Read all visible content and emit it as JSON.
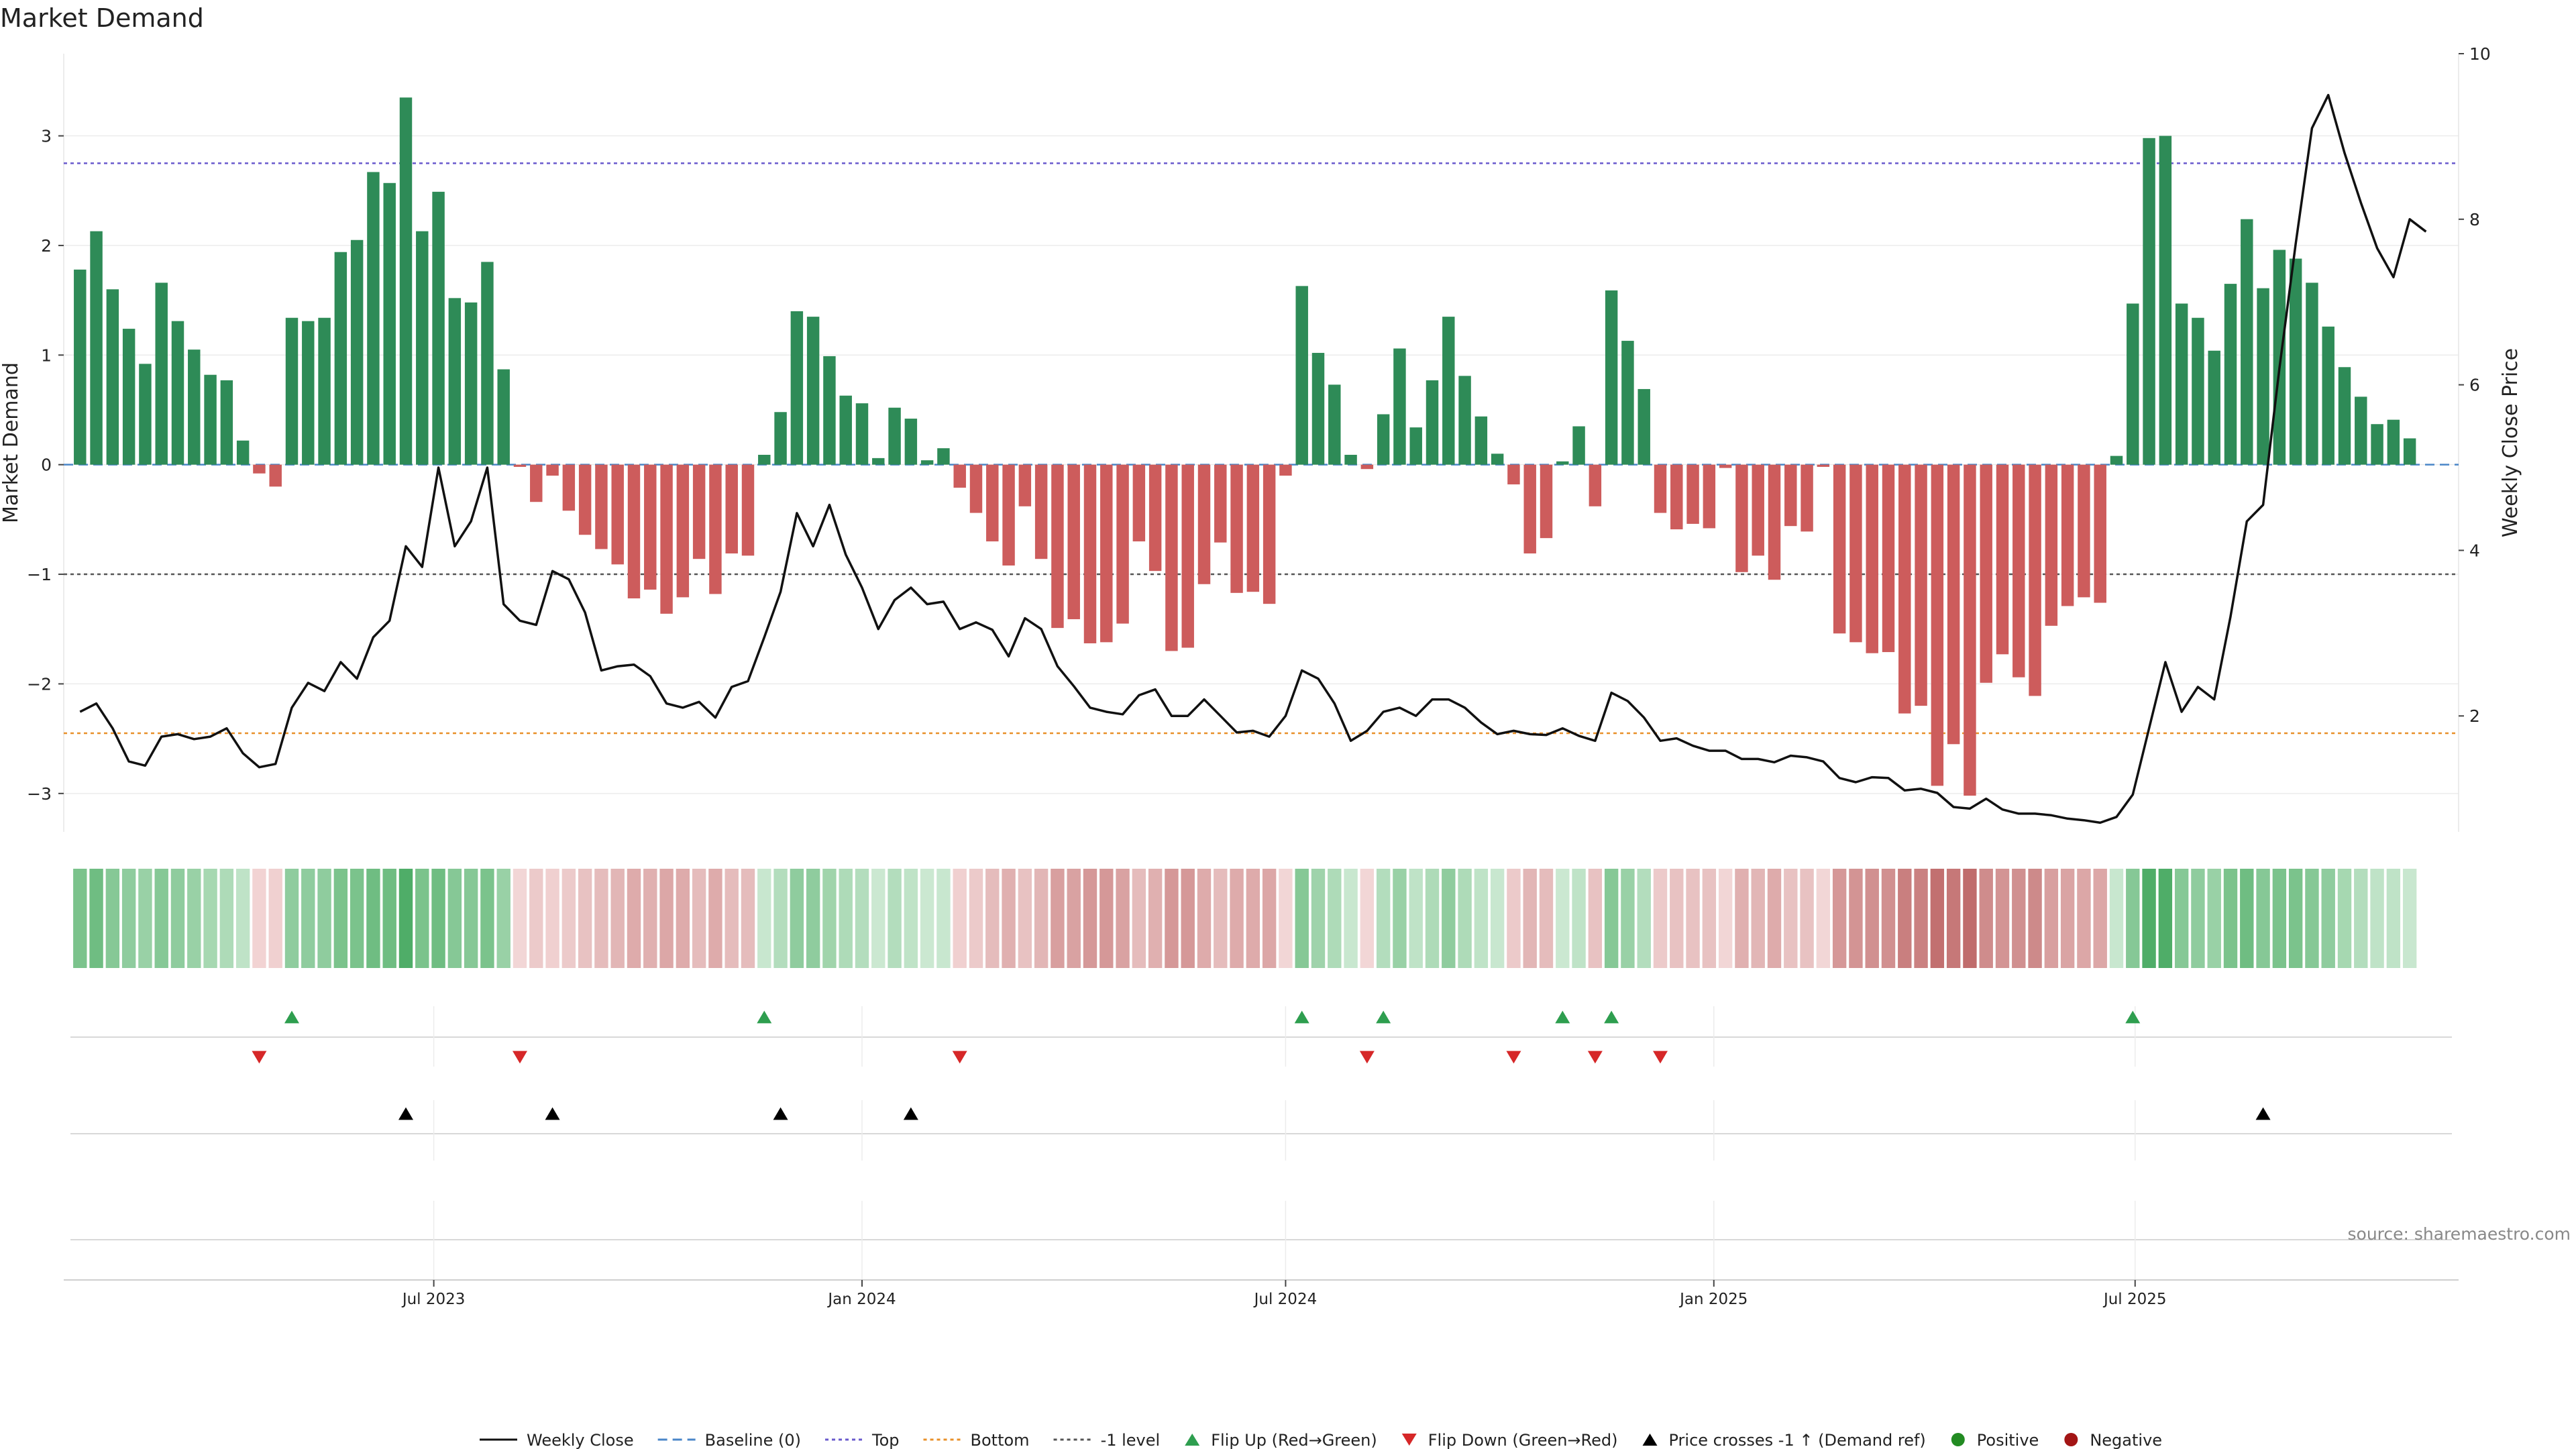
{
  "chart_data": {
    "type": "bar",
    "title": "Market Demand",
    "ylabel": "Market Demand",
    "y2label": "Weekly Close Price",
    "ylim": [
      -3.35,
      3.75
    ],
    "y2lim": [
      0.6,
      10.0
    ],
    "yticks": [
      -3,
      -2,
      -1,
      0,
      1,
      2,
      3
    ],
    "y2ticks": [
      2,
      4,
      6,
      8,
      10
    ],
    "reference_lines": {
      "top": 2.75,
      "bottom": -2.45,
      "minus_one": -1,
      "baseline": 0
    },
    "xlim_dates": [
      "2023-01-23",
      "2025-11-17"
    ],
    "xticks": [
      {
        "label": "Jul 2023",
        "date": "2023-07-01"
      },
      {
        "label": "Jan 2024",
        "date": "2024-01-01"
      },
      {
        "label": "Jul 2024",
        "date": "2024-07-01"
      },
      {
        "label": "Jan 2025",
        "date": "2025-01-01"
      },
      {
        "label": "Jul 2025",
        "date": "2025-07-01"
      }
    ],
    "first_week": "2023-01-30",
    "demand": [
      1.78,
      2.13,
      1.6,
      1.24,
      0.92,
      1.66,
      1.31,
      1.05,
      0.82,
      0.77,
      0.22,
      -0.08,
      -0.2,
      1.34,
      1.31,
      1.34,
      1.94,
      2.05,
      2.67,
      2.57,
      3.35,
      2.13,
      2.49,
      1.52,
      1.48,
      1.85,
      0.87,
      -0.02,
      -0.34,
      -0.1,
      -0.42,
      -0.64,
      -0.77,
      -0.91,
      -1.22,
      -1.14,
      -1.36,
      -1.21,
      -0.86,
      -1.18,
      -0.81,
      -0.83,
      0.09,
      0.48,
      1.4,
      1.35,
      0.99,
      0.63,
      0.56,
      0.06,
      0.52,
      0.42,
      0.04,
      0.15,
      -0.21,
      -0.44,
      -0.7,
      -0.92,
      -0.38,
      -0.86,
      -1.49,
      -1.41,
      -1.63,
      -1.62,
      -1.45,
      -0.7,
      -0.97,
      -1.7,
      -1.67,
      -1.09,
      -0.71,
      -1.17,
      -1.16,
      -1.27,
      -0.1,
      1.63,
      1.02,
      0.73,
      0.09,
      -0.04,
      0.46,
      1.06,
      0.34,
      0.77,
      1.35,
      0.81,
      0.44,
      0.1,
      -0.18,
      -0.81,
      -0.67,
      0.03,
      0.35,
      -0.38,
      1.59,
      1.13,
      0.69,
      -0.44,
      -0.59,
      -0.54,
      -0.58,
      -0.03,
      -0.98,
      -0.83,
      -1.05,
      -0.56,
      -0.61,
      -0.02,
      -1.54,
      -1.62,
      -1.72,
      -1.71,
      -2.27,
      -2.2,
      -2.93,
      -2.55,
      -3.02,
      -1.99,
      -1.73,
      -1.94,
      -2.11,
      -1.47,
      -1.29,
      -1.21,
      -1.26,
      0.08,
      1.47,
      2.98,
      3.0,
      1.47,
      1.34,
      1.04,
      1.65,
      2.24,
      1.61,
      1.96,
      1.88,
      1.66,
      1.26,
      0.89,
      0.62,
      0.37,
      0.41,
      0.24
    ],
    "close": [
      2.05,
      2.15,
      1.85,
      1.45,
      1.4,
      1.75,
      1.78,
      1.72,
      1.75,
      1.85,
      1.55,
      1.38,
      1.42,
      2.1,
      2.4,
      2.3,
      2.65,
      2.45,
      2.95,
      3.15,
      4.05,
      3.8,
      5.0,
      4.05,
      4.35,
      5.0,
      3.35,
      3.15,
      3.1,
      3.75,
      3.65,
      3.25,
      2.55,
      2.6,
      2.62,
      2.48,
      2.15,
      2.1,
      2.17,
      1.98,
      2.35,
      2.42,
      2.95,
      3.5,
      4.45,
      4.05,
      4.55,
      3.95,
      3.55,
      3.05,
      3.4,
      3.55,
      3.35,
      3.38,
      3.05,
      3.13,
      3.04,
      2.72,
      3.18,
      3.05,
      2.6,
      2.36,
      2.1,
      2.05,
      2.02,
      2.25,
      2.32,
      2.0,
      2.0,
      2.2,
      2.0,
      1.8,
      1.82,
      1.75,
      2.0,
      2.55,
      2.45,
      2.15,
      1.7,
      1.82,
      2.05,
      2.1,
      2.0,
      2.2,
      2.2,
      2.1,
      1.92,
      1.78,
      1.82,
      1.78,
      1.77,
      1.85,
      1.76,
      1.7,
      2.28,
      2.18,
      1.98,
      1.7,
      1.73,
      1.64,
      1.58,
      1.58,
      1.48,
      1.48,
      1.44,
      1.52,
      1.5,
      1.45,
      1.25,
      1.2,
      1.26,
      1.25,
      1.1,
      1.12,
      1.07,
      0.9,
      0.88,
      1.0,
      0.87,
      0.82,
      0.82,
      0.8,
      0.76,
      0.74,
      0.71,
      0.78,
      1.05,
      1.85,
      2.65,
      2.05,
      2.35,
      2.2,
      3.2,
      4.35,
      4.55,
      6.2,
      7.7,
      9.1,
      9.5,
      8.8,
      8.2,
      7.65,
      7.3,
      8.0,
      7.85
    ],
    "strip_colors": [
      "#7bc38c",
      "#6fbd82",
      "#86c896",
      "#8fcc9e",
      "#99d1a6",
      "#86c896",
      "#8fcc9e",
      "#99d1a6",
      "#a6d8b1",
      "#aedbb8",
      "#bfe3c7",
      "#f2d3d3",
      "#f0d0d0",
      "#8fcc9e",
      "#8fcc9e",
      "#8fcc9e",
      "#7bc38c",
      "#7bc38c",
      "#6fbd82",
      "#6fbd82",
      "#4fad68",
      "#7bc38c",
      "#6fbd82",
      "#86c896",
      "#86c896",
      "#7bc38c",
      "#99d1a6",
      "#f2d6d6",
      "#eccaca",
      "#f0d0d0",
      "#eccaca",
      "#e8c2c2",
      "#e5bcbc",
      "#e2b6b6",
      "#deabab",
      "#e0b0b0",
      "#dca7a7",
      "#deabab",
      "#e5bcbc",
      "#deabab",
      "#e5bcbc",
      "#e5bcbc",
      "#c8e7cf",
      "#b3ddbd",
      "#8fcc9e",
      "#8fcc9e",
      "#a0d4ab",
      "#aedbb8",
      "#b3ddbd",
      "#cbe8d1",
      "#b3ddbd",
      "#bfe3c7",
      "#cbe8d1",
      "#c8e7cf",
      "#f0d0d0",
      "#eccaca",
      "#e5bcbc",
      "#e0b0b0",
      "#e8c2c2",
      "#e2b6b6",
      "#d89f9f",
      "#d9a2a2",
      "#d59898",
      "#d59898",
      "#d9a2a2",
      "#e5bcbc",
      "#e0b0b0",
      "#d59898",
      "#d59898",
      "#deabab",
      "#e5bcbc",
      "#deabab",
      "#deabab",
      "#dca7a7",
      "#f2d6d6",
      "#86c896",
      "#9fd3ab",
      "#aedbb8",
      "#c8e7cf",
      "#f2d6d6",
      "#b3ddbd",
      "#99d1a6",
      "#bfe3c7",
      "#aedbb8",
      "#8fcc9e",
      "#aedbb8",
      "#bfe3c7",
      "#c8e7cf",
      "#eccaca",
      "#e2b6b6",
      "#e5bcbc",
      "#cbe8d1",
      "#bfe3c7",
      "#e8c2c2",
      "#86c896",
      "#99d1a6",
      "#b3ddbd",
      "#eccaca",
      "#e8c2c2",
      "#e8c2c2",
      "#e8c2c2",
      "#f2d6d6",
      "#e0b0b0",
      "#e2b6b6",
      "#deabab",
      "#e8c2c2",
      "#e8c2c2",
      "#f2d6d6",
      "#d59898",
      "#d39494",
      "#d19090",
      "#d19090",
      "#c97f7f",
      "#ca8181",
      "#c27070",
      "#c67878",
      "#c06c6c",
      "#cf8c8c",
      "#d39494",
      "#d09090",
      "#cd8a8a",
      "#d89f9f",
      "#daa4a4",
      "#dca7a7",
      "#dca7a7",
      "#c8e7cf",
      "#86c896",
      "#4fad68",
      "#4fad68",
      "#86c896",
      "#8fcc9e",
      "#99d1a6",
      "#7bc38c",
      "#6fbd82",
      "#86c896",
      "#7bc38c",
      "#7bc38c",
      "#86c896",
      "#8fcc9e",
      "#a6d8b1",
      "#b3ddbd",
      "#bfe3c7",
      "#bfe3c7",
      "#c8e7cf"
    ],
    "flip_up_weeks": [
      13,
      42,
      75,
      80,
      91,
      94,
      126
    ],
    "flip_down_weeks": [
      11,
      27,
      54,
      79,
      88,
      93,
      97
    ],
    "price_cross_weeks": [
      20,
      29,
      43,
      51,
      134
    ],
    "legend": [
      {
        "label": "Weekly Close",
        "kind": "line-solid",
        "color": "#111111"
      },
      {
        "label": "Baseline (0)",
        "kind": "line-dash",
        "color": "#4a86c8"
      },
      {
        "label": "Top",
        "kind": "line-dot",
        "color": "#6a5acd"
      },
      {
        "label": "Bottom",
        "kind": "line-dot",
        "color": "#e8902a"
      },
      {
        "label": "-1 level",
        "kind": "line-dot",
        "color": "#555555"
      },
      {
        "label": "Flip Up (Red→Green)",
        "kind": "tri-up",
        "color": "#2e9e4f"
      },
      {
        "label": "Flip Down (Green→Red)",
        "kind": "tri-down",
        "color": "#d62728"
      },
      {
        "label": "Price crosses -1 ↑ (Demand ref)",
        "kind": "tri-up",
        "color": "#000000"
      },
      {
        "label": "Positive",
        "kind": "dot",
        "color": "#228b22"
      },
      {
        "label": "Negative",
        "kind": "dot",
        "color": "#a31515"
      }
    ],
    "colors": {
      "positive_bar": "#2e8b57",
      "negative_bar": "#cd5c5c",
      "close_line": "#111111"
    },
    "grid": true,
    "legend_position": "bottom-center",
    "source": "source: sharemaestro.com"
  }
}
